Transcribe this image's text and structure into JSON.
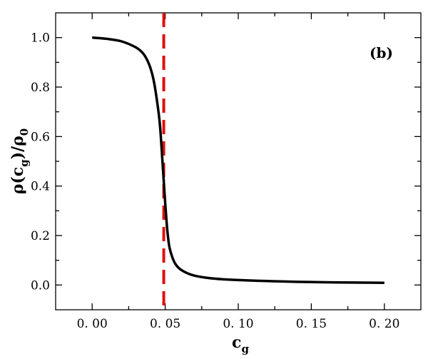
{
  "chart_data": {
    "type": "line",
    "panel_label": "(b)",
    "xlabel": {
      "base": "c",
      "sub": "g"
    },
    "ylabel": {
      "p1": "ρ",
      "p2": "(",
      "base": "c",
      "sub": "g",
      "p3": ")/",
      "p4": "ρ",
      "sub2": "0"
    },
    "xlim": [
      -0.025,
      0.225
    ],
    "ylim": [
      -0.1,
      1.1
    ],
    "xticks": [
      0.0,
      0.05,
      0.1,
      0.15,
      0.2
    ],
    "xtick_labels": [
      "0. 00",
      "0. 05",
      "0. 10",
      "0. 15",
      "0. 20"
    ],
    "yticks": [
      0.0,
      0.2,
      0.4,
      0.6,
      0.8,
      1.0
    ],
    "ytick_labels": [
      "0.0",
      "0.2",
      "0.4",
      "0.6",
      "0.8",
      "1.0"
    ],
    "grid": false,
    "series": [
      {
        "color": "#000000",
        "style": "solid",
        "x": [
          0.0,
          0.01,
          0.02,
          0.03,
          0.035,
          0.038,
          0.04,
          0.042,
          0.044,
          0.046,
          0.047,
          0.048,
          0.049,
          0.05,
          0.051,
          0.052,
          0.053,
          0.055,
          0.057,
          0.06,
          0.065,
          0.07,
          0.08,
          0.09,
          0.1,
          0.12,
          0.14,
          0.16,
          0.18,
          0.2
        ],
        "y": [
          1.0,
          0.995,
          0.985,
          0.96,
          0.935,
          0.905,
          0.875,
          0.83,
          0.76,
          0.67,
          0.6,
          0.51,
          0.42,
          0.33,
          0.25,
          0.19,
          0.15,
          0.11,
          0.085,
          0.065,
          0.048,
          0.038,
          0.028,
          0.023,
          0.02,
          0.016,
          0.013,
          0.011,
          0.01,
          0.009
        ]
      }
    ],
    "vlines": [
      {
        "x": 0.049,
        "color": "#e01010",
        "style": "dashed"
      }
    ]
  }
}
